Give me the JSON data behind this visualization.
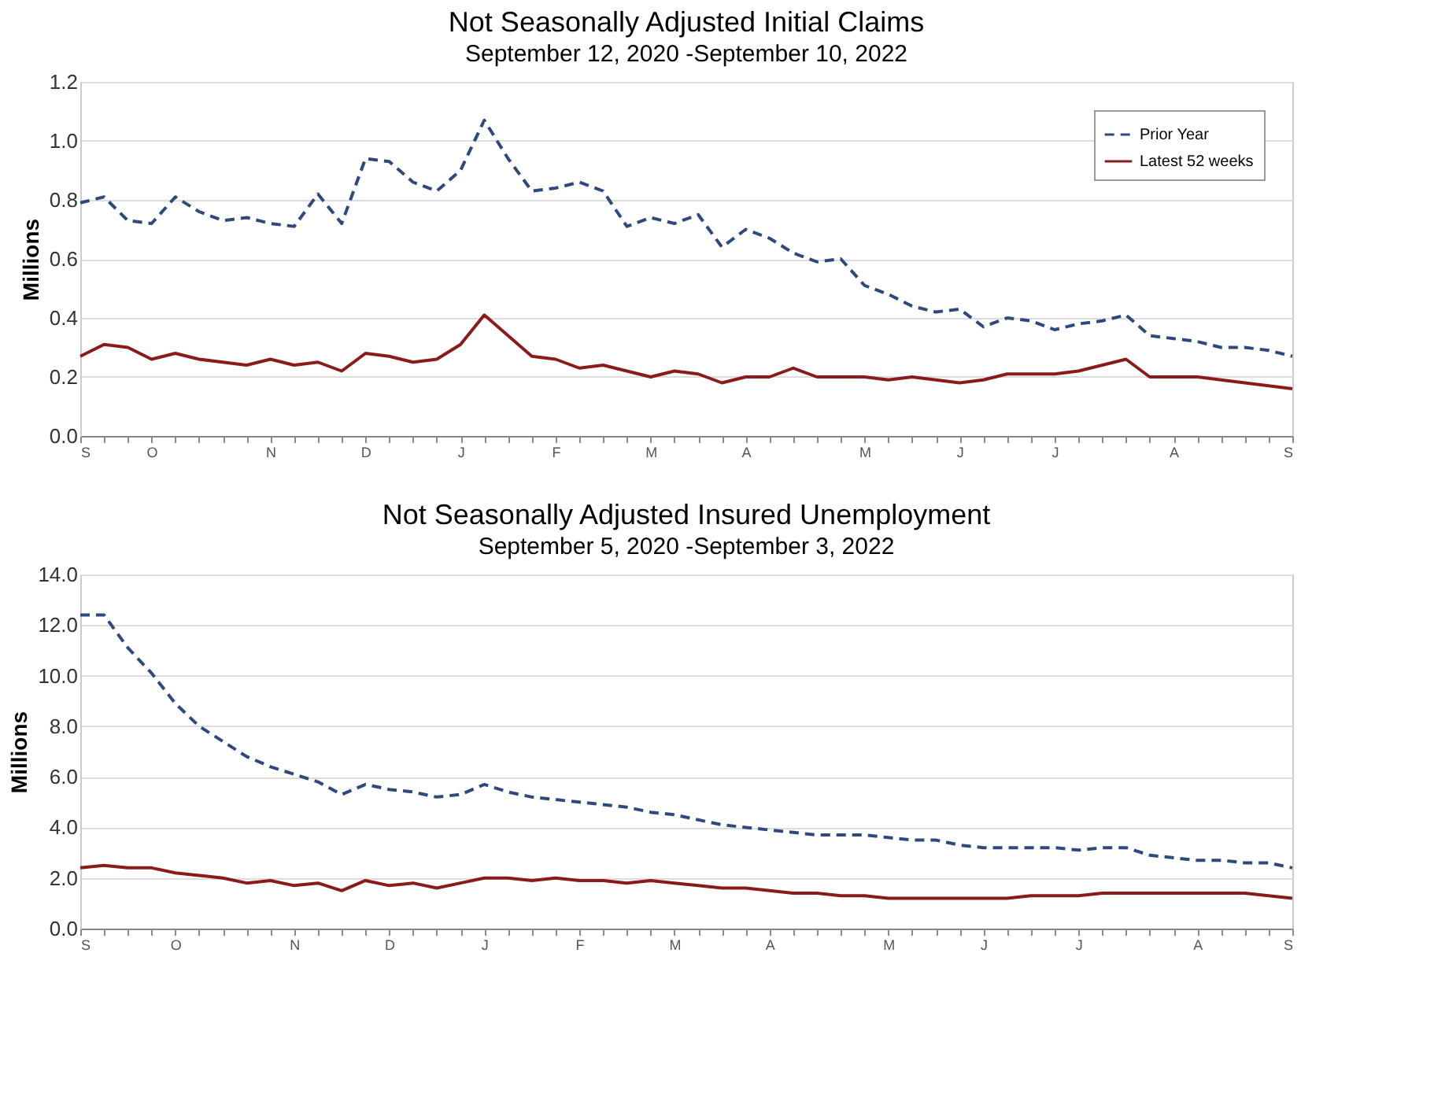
{
  "chart_data": [
    {
      "type": "line",
      "title": "Not Seasonally Adjusted Initial Claims",
      "subtitle": "September 12, 2020 -September 10, 2022",
      "ylabel": "Millions",
      "categories": [
        "S",
        null,
        null,
        "O",
        null,
        null,
        null,
        null,
        "N",
        null,
        null,
        null,
        "D",
        null,
        null,
        null,
        "J",
        null,
        null,
        null,
        "F",
        null,
        null,
        null,
        "M",
        null,
        null,
        null,
        "A",
        null,
        null,
        null,
        null,
        "M",
        null,
        null,
        null,
        "J",
        null,
        null,
        null,
        "J",
        null,
        null,
        null,
        null,
        "A",
        null,
        null,
        null,
        null,
        "S"
      ],
      "ylim": [
        0,
        1.2
      ],
      "yticks": [
        {
          "value": 0,
          "label": "0.0"
        },
        {
          "value": 0.2,
          "label": "0.2"
        },
        {
          "value": 0.4,
          "label": "0.4"
        },
        {
          "value": 0.6,
          "label": "0.6"
        },
        {
          "value": 0.8,
          "label": "0.8"
        },
        {
          "value": 1,
          "label": "1.0"
        },
        {
          "value": 1.2,
          "label": "1.2"
        }
      ],
      "grid": "y",
      "legend": "top right",
      "series": [
        {
          "name": "Prior Year",
          "color": "#2e4a7d",
          "line_style": "dashed",
          "values": [
            0.79,
            0.81,
            0.73,
            0.72,
            0.81,
            0.76,
            0.73,
            0.74,
            0.72,
            0.71,
            0.82,
            0.72,
            0.94,
            0.93,
            0.86,
            0.83,
            0.9,
            1.07,
            0.94,
            0.83,
            0.84,
            0.86,
            0.83,
            0.71,
            0.74,
            0.72,
            0.75,
            0.64,
            0.7,
            0.67,
            0.62,
            0.59,
            0.6,
            0.51,
            0.48,
            0.44,
            0.42,
            0.43,
            0.37,
            0.4,
            0.39,
            0.36,
            0.38,
            0.39,
            0.41,
            0.34,
            0.33,
            0.32,
            0.3,
            0.3,
            0.29,
            0.27
          ]
        },
        {
          "name": "Latest 52 weeks",
          "color": "#8b1a1a",
          "line_style": "solid",
          "values": [
            0.27,
            0.31,
            0.3,
            0.26,
            0.28,
            0.26,
            0.25,
            0.24,
            0.26,
            0.24,
            0.25,
            0.22,
            0.28,
            0.27,
            0.25,
            0.26,
            0.31,
            0.41,
            0.34,
            0.27,
            0.26,
            0.23,
            0.24,
            0.22,
            0.2,
            0.22,
            0.21,
            0.18,
            0.2,
            0.2,
            0.23,
            0.2,
            0.2,
            0.2,
            0.19,
            0.2,
            0.19,
            0.18,
            0.19,
            0.21,
            0.21,
            0.21,
            0.22,
            0.24,
            0.26,
            0.2,
            0.2,
            0.2,
            0.19,
            0.18,
            0.17,
            0.16
          ]
        }
      ]
    },
    {
      "type": "line",
      "title": "Not Seasonally Adjusted Insured Unemployment",
      "subtitle": "September 5, 2020 -September 3, 2022",
      "ylabel": "Millions",
      "categories": [
        "S",
        null,
        null,
        null,
        "O",
        null,
        null,
        null,
        null,
        "N",
        null,
        null,
        null,
        "D",
        null,
        null,
        null,
        "J",
        null,
        null,
        null,
        "F",
        null,
        null,
        null,
        "M",
        null,
        null,
        null,
        "A",
        null,
        null,
        null,
        null,
        "M",
        null,
        null,
        null,
        "J",
        null,
        null,
        null,
        "J",
        null,
        null,
        null,
        null,
        "A",
        null,
        null,
        null,
        "S"
      ],
      "ylim": [
        0,
        14
      ],
      "yticks": [
        {
          "value": 0,
          "label": "0.0"
        },
        {
          "value": 2,
          "label": "2.0"
        },
        {
          "value": 4,
          "label": "4.0"
        },
        {
          "value": 6,
          "label": "6.0"
        },
        {
          "value": 8,
          "label": "8.0"
        },
        {
          "value": 10,
          "label": "10.0"
        },
        {
          "value": 12,
          "label": "12.0"
        },
        {
          "value": 14,
          "label": "14.0"
        }
      ],
      "grid": "y",
      "legend": "top right",
      "series": [
        {
          "name": "Prior Year",
          "color": "#2e4a7d",
          "line_style": "dashed",
          "values": [
            12.4,
            12.4,
            11.1,
            10.1,
            8.9,
            8.0,
            7.4,
            6.8,
            6.4,
            6.1,
            5.8,
            5.3,
            5.7,
            5.5,
            5.4,
            5.2,
            5.3,
            5.7,
            5.4,
            5.2,
            5.1,
            5.0,
            4.9,
            4.8,
            4.6,
            4.5,
            4.3,
            4.1,
            4.0,
            3.9,
            3.8,
            3.7,
            3.7,
            3.7,
            3.6,
            3.5,
            3.5,
            3.3,
            3.2,
            3.2,
            3.2,
            3.2,
            3.1,
            3.2,
            3.2,
            2.9,
            2.8,
            2.7,
            2.7,
            2.6,
            2.6,
            2.4
          ]
        },
        {
          "name": "Latest 52 weeks",
          "color": "#8b1a1a",
          "line_style": "solid",
          "values": [
            2.4,
            2.5,
            2.4,
            2.4,
            2.2,
            2.1,
            2.0,
            1.8,
            1.9,
            1.7,
            1.8,
            1.5,
            1.9,
            1.7,
            1.8,
            1.6,
            1.8,
            2.0,
            2.0,
            1.9,
            2.0,
            1.9,
            1.9,
            1.8,
            1.9,
            1.8,
            1.7,
            1.6,
            1.6,
            1.5,
            1.4,
            1.4,
            1.3,
            1.3,
            1.2,
            1.2,
            1.2,
            1.2,
            1.2,
            1.2,
            1.3,
            1.3,
            1.3,
            1.4,
            1.4,
            1.4,
            1.4,
            1.4,
            1.4,
            1.4,
            1.3,
            1.2
          ]
        }
      ]
    }
  ]
}
